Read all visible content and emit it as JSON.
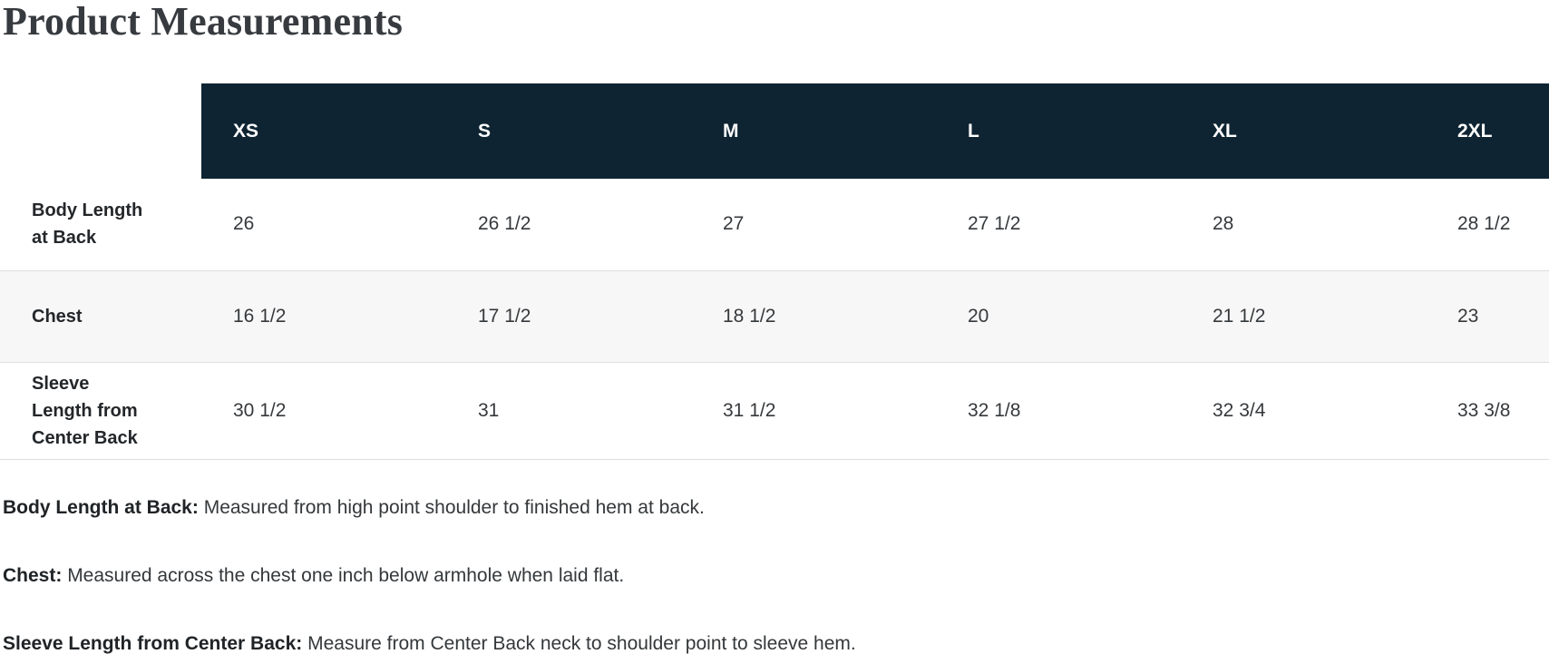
{
  "page": {
    "title": "Product Measurements"
  },
  "colors": {
    "header_bg": "#0e2433",
    "header_text": "#ffffff",
    "alt_row_bg": "#f7f7f7",
    "row_border": "#dfdfdf",
    "body_text": "#36393c",
    "title_text": "#373b40"
  },
  "table": {
    "sizes": [
      "XS",
      "S",
      "M",
      "L",
      "XL",
      "2XL"
    ],
    "rows": [
      {
        "label": "Body Length at Back",
        "values": [
          "26",
          "26 1/2",
          "27",
          "27 1/2",
          "28",
          "28 1/2"
        ]
      },
      {
        "label": "Chest",
        "values": [
          "16 1/2",
          "17 1/2",
          "18 1/2",
          "20",
          "21 1/2",
          "23"
        ]
      },
      {
        "label": "Sleeve Length from Center Back",
        "values": [
          "30 1/2",
          "31",
          "31 1/2",
          "32 1/8",
          "32 3/4",
          "33 3/8"
        ]
      }
    ]
  },
  "footnotes": [
    {
      "term": "Body Length at Back:",
      "definition": "Measured from high point shoulder to finished hem at back."
    },
    {
      "term": "Chest:",
      "definition": "Measured across the chest one inch below armhole when laid flat."
    },
    {
      "term": "Sleeve Length from Center Back:",
      "definition": "Measure from Center Back neck to shoulder point to sleeve hem."
    }
  ]
}
